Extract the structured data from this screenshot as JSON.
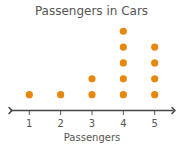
{
  "chart_data": {
    "type": "dot_plot",
    "title": "Passengers in Cars",
    "x_label": "Passengers",
    "x": [
      1,
      2,
      3,
      4,
      5
    ],
    "values": [
      1,
      1,
      2,
      5,
      4
    ],
    "color": "#e8870e",
    "xlim": [
      0.4,
      5.6
    ],
    "xticks": [
      1,
      2,
      3,
      4,
      5
    ],
    "grid": false,
    "tick_labels": "x"
  }
}
